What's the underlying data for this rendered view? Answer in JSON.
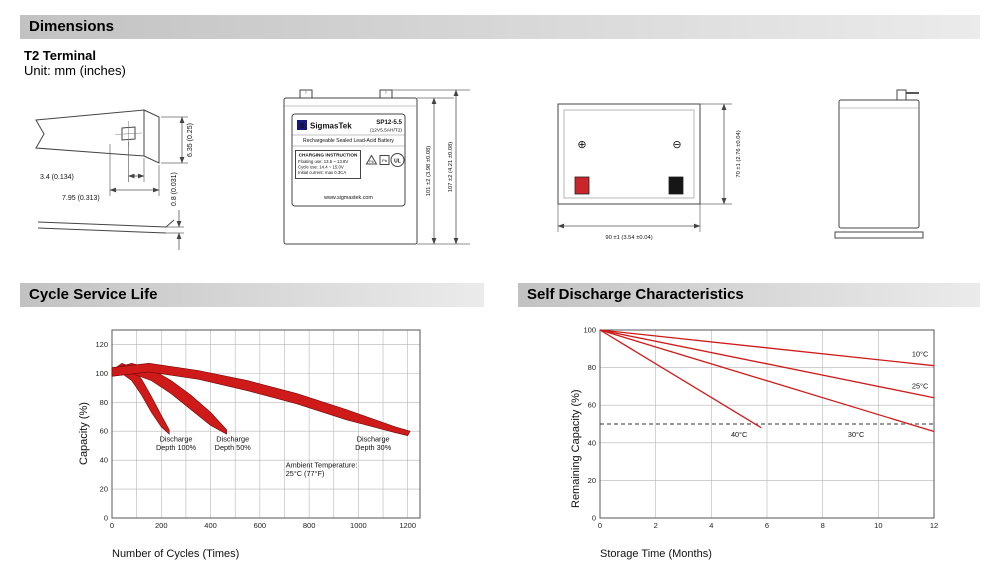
{
  "sections": {
    "dimensions": {
      "title": "Dimensions",
      "subtitle": "T2 Terminal",
      "unit_note": "Unit: mm (inches)"
    },
    "cycle_life": {
      "title": "Cycle Service Life"
    },
    "self_discharge": {
      "title": "Self Discharge Characteristics"
    }
  },
  "drawings": {
    "terminal": {
      "dim_blade_width": "6.35 (0.25)",
      "dim_hole_offset": "3.4 (0.134)",
      "dim_blade_length": "7.95 (0.313)",
      "dim_thickness": "0.8 (0.031)"
    },
    "front_view": {
      "logo_letter": "S",
      "brand": "SigmasTek",
      "model": "SP12-5.5",
      "rating": "(12V5.5AH/T2)",
      "battery_type": "Rechargeable Sealed Lead-Acid Battery",
      "charging_title": "CHARGING INSTRUCTION",
      "charging_lines": [
        "Floating use: 13.5 ~ 13.8V",
        "Cycle use: 14.4 ~ 15.0V",
        "Initial current: max 0.3CA"
      ],
      "pb_symbol": "Pb",
      "ul_mark": "UL",
      "website": "www.sigmastek.com",
      "dim_case_height": "101 ±2 (3.98 ±0.08)",
      "dim_total_height": "107 ±2 (4.21 ±0.08)"
    },
    "top_view": {
      "positive_symbol": "⊕",
      "negative_symbol": "⊖",
      "dim_width": "70 ±1 (2.76 ±0.04)",
      "dim_length": "90 ±1 (3.54 ±0.04)"
    }
  },
  "chart_data": [
    {
      "id": "cycle-service-life",
      "type": "area",
      "title": "Cycle Service Life",
      "xlabel": "Number of Cycles (Times)",
      "ylabel": "Capacity (%)",
      "xlim": [
        0,
        1250
      ],
      "ylim": [
        0,
        130
      ],
      "xticks": [
        0,
        200,
        400,
        600,
        800,
        1000,
        1200
      ],
      "yticks": [
        0,
        20,
        40,
        60,
        80,
        100,
        120
      ],
      "grid": {
        "x_step": 100,
        "y_step": 20
      },
      "legend": "none",
      "series": [
        {
          "name": "Discharge Depth 100%",
          "upper": [
            [
              0,
              102
            ],
            [
              40,
              107
            ],
            [
              80,
              104
            ],
            [
              120,
              96
            ],
            [
              160,
              84
            ],
            [
              200,
              71
            ],
            [
              232,
              61
            ]
          ],
          "lower": [
            [
              0,
              98
            ],
            [
              40,
              100
            ],
            [
              80,
              95
            ],
            [
              120,
              85
            ],
            [
              160,
              73
            ],
            [
              200,
              63
            ],
            [
              232,
              58
            ]
          ]
        },
        {
          "name": "Discharge Depth 50%",
          "upper": [
            [
              0,
              103
            ],
            [
              80,
              107
            ],
            [
              160,
              103
            ],
            [
              240,
              95
            ],
            [
              320,
              85
            ],
            [
              400,
              73
            ],
            [
              465,
              61
            ]
          ],
          "lower": [
            [
              0,
              98
            ],
            [
              80,
              100
            ],
            [
              160,
              95
            ],
            [
              240,
              86
            ],
            [
              320,
              75
            ],
            [
              400,
              64
            ],
            [
              465,
              58
            ]
          ]
        },
        {
          "name": "Discharge Depth 30%",
          "upper": [
            [
              0,
              104
            ],
            [
              150,
              107
            ],
            [
              350,
              102
            ],
            [
              550,
              95
            ],
            [
              750,
              86
            ],
            [
              950,
              75
            ],
            [
              1150,
              63
            ],
            [
              1210,
              60
            ]
          ],
          "lower": [
            [
              0,
              98
            ],
            [
              150,
              101
            ],
            [
              350,
              96
            ],
            [
              550,
              88
            ],
            [
              750,
              79
            ],
            [
              950,
              68
            ],
            [
              1150,
              59
            ],
            [
              1200,
              57
            ]
          ]
        }
      ],
      "annotations": [
        {
          "x": 260,
          "y": 53,
          "lines": [
            "Discharge",
            "Depth 100%"
          ]
        },
        {
          "x": 490,
          "y": 53,
          "lines": [
            "Discharge",
            "Depth 50%"
          ]
        },
        {
          "x": 1060,
          "y": 53,
          "lines": [
            "Discharge",
            "Depth 30%"
          ]
        },
        {
          "x": 705,
          "y": 35,
          "lines": [
            "Ambient Temperature:",
            "25°C (77°F)"
          ],
          "align": "left"
        }
      ]
    },
    {
      "id": "self-discharge-characteristics",
      "type": "line",
      "title": "Self Discharge Characteristics",
      "xlabel": "Storage Time (Months)",
      "ylabel": "Remaining Capacity (%)",
      "xlim": [
        0,
        12
      ],
      "ylim": [
        0,
        100
      ],
      "xticks": [
        0,
        2,
        4,
        6,
        8,
        10,
        12
      ],
      "yticks": [
        0,
        20,
        40,
        60,
        80,
        100
      ],
      "grid": {
        "x_step": 2,
        "y_step": 20
      },
      "legend": "inline",
      "reference_line": {
        "y": 50,
        "style": "dashed"
      },
      "series": [
        {
          "name": "10°C",
          "points": [
            [
              0,
              100
            ],
            [
              12,
              81
            ]
          ]
        },
        {
          "name": "25°C",
          "points": [
            [
              0,
              100
            ],
            [
              12,
              64
            ]
          ]
        },
        {
          "name": "30°C",
          "points": [
            [
              0,
              100
            ],
            [
              12,
              46
            ]
          ]
        },
        {
          "name": "40°C",
          "points": [
            [
              0,
              100
            ],
            [
              5.8,
              48
            ]
          ]
        }
      ],
      "annotations": [
        {
          "x": 11.5,
          "y": 86,
          "lines": [
            "10°C"
          ]
        },
        {
          "x": 11.5,
          "y": 69,
          "lines": [
            "25°C"
          ]
        },
        {
          "x": 9.2,
          "y": 43,
          "lines": [
            "30°C"
          ]
        },
        {
          "x": 5.0,
          "y": 43,
          "lines": [
            "40°C"
          ]
        }
      ]
    }
  ]
}
